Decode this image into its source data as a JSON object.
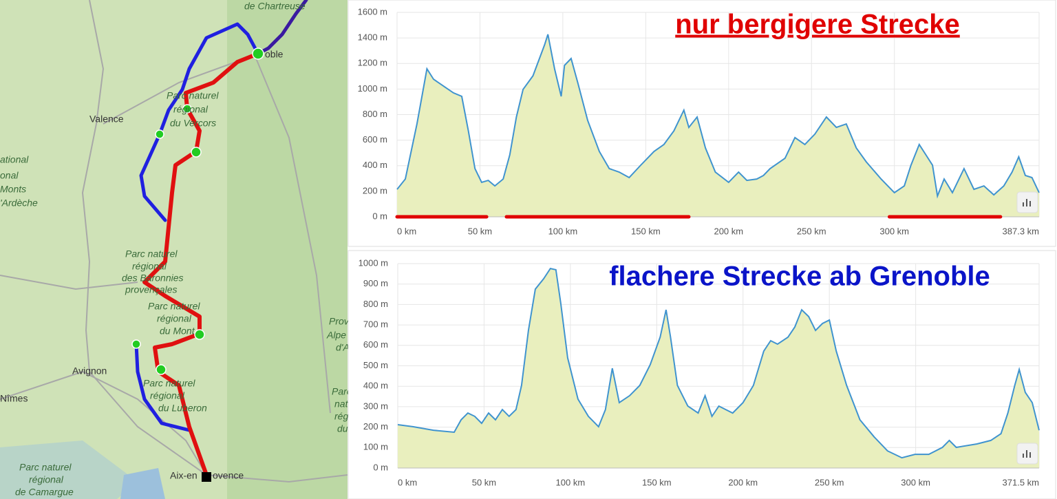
{
  "map": {
    "labels": [
      "de Chartreuse",
      "oble",
      "Valence",
      "Parc naturel",
      "régional",
      "du Vercors",
      "Parc naturel",
      "régional",
      "des Baronnies",
      "provençales",
      "Parc naturel",
      "régional",
      "du Mont",
      "Avignon",
      "Nîmes",
      "Parc naturel",
      "régional",
      "du Luberon",
      "Aix-en",
      "ovence",
      "Parc naturel",
      "régional",
      "de Camargue",
      "Prov",
      "Alpe",
      "d'A",
      "Parc",
      "nat",
      "rég",
      "du",
      "ational",
      "onal",
      "Monts",
      "'Ardèche"
    ]
  },
  "chart_data": [
    {
      "type": "area",
      "title": "nur bergigere Strecke",
      "title_color": "#e00000",
      "title_underline": true,
      "color": "#3f93cf",
      "fill": "#e9efbe",
      "x": [
        0,
        5,
        12,
        18,
        22,
        28,
        34,
        39,
        43,
        47,
        51,
        55,
        59,
        64,
        68,
        72,
        76,
        82,
        89,
        91,
        95,
        99,
        101,
        105,
        109,
        115,
        122,
        128,
        134,
        140,
        147,
        155,
        161,
        167,
        173,
        176,
        181,
        186,
        192,
        200,
        206,
        211,
        217,
        221,
        225,
        234,
        240,
        246,
        252,
        259,
        265,
        271,
        277,
        283,
        292,
        300,
        306,
        310,
        315,
        319,
        323,
        326,
        330,
        335,
        342,
        348,
        354,
        360,
        366,
        371,
        375,
        379,
        383,
        387.3
      ],
      "values": [
        215,
        296,
        727,
        1158,
        1077,
        1023,
        970,
        943,
        673,
        377,
        270,
        285,
        242,
        296,
        485,
        781,
        997,
        1104,
        1347,
        1428,
        1158,
        943,
        1185,
        1239,
        1050,
        754,
        512,
        377,
        350,
        307,
        404,
        512,
        566,
        673,
        835,
        700,
        781,
        539,
        350,
        270,
        350,
        285,
        296,
        323,
        377,
        458,
        620,
        566,
        647,
        781,
        700,
        727,
        539,
        431,
        296,
        189,
        242,
        404,
        566,
        485,
        404,
        162,
        296,
        189,
        377,
        215,
        242,
        172,
        242,
        350,
        469,
        323,
        307,
        189
      ],
      "xlim": [
        0,
        387.3
      ],
      "xticks": [
        {
          "value": 0,
          "label": "0 km"
        },
        {
          "value": 50,
          "label": "50 km"
        },
        {
          "value": 100,
          "label": "100 km"
        },
        {
          "value": 150,
          "label": "150 km"
        },
        {
          "value": 200,
          "label": "200 km"
        },
        {
          "value": 250,
          "label": "250 km"
        },
        {
          "value": 300,
          "label": "300 km"
        },
        {
          "value": 387.3,
          "label": "387.3 km"
        }
      ],
      "ylim": [
        0,
        1600
      ],
      "yticks": [
        {
          "value": 0,
          "label": "0 m"
        },
        {
          "value": 200,
          "label": "200 m"
        },
        {
          "value": 400,
          "label": "400 m"
        },
        {
          "value": 600,
          "label": "600 m"
        },
        {
          "value": 800,
          "label": "800 m"
        },
        {
          "value": 1000,
          "label": "1000 m"
        },
        {
          "value": 1200,
          "label": "1200 m"
        },
        {
          "value": 1400,
          "label": "1400 m"
        },
        {
          "value": 1600,
          "label": "1600 m"
        }
      ],
      "grid": true,
      "highlights": [
        [
          0,
          54
        ],
        [
          66,
          176
        ],
        [
          297,
          364
        ]
      ],
      "highlight_color": "#e00000"
    },
    {
      "type": "area",
      "title": "flachere Strecke ab Grenoble",
      "title_color": "#0a14c8",
      "title_underline": false,
      "color": "#3f93cf",
      "fill": "#e9efbe",
      "x": [
        0,
        9,
        20.7,
        32.7,
        36.7,
        40.6,
        44.6,
        48.6,
        52.6,
        56.6,
        60.6,
        64.5,
        68.5,
        71.7,
        75.7,
        79.7,
        84.5,
        88.4,
        91.6,
        94.4,
        98.4,
        104.4,
        110.4,
        116.3,
        120.3,
        124.3,
        128.3,
        134.3,
        140.2,
        146.2,
        152,
        155.4,
        158,
        162,
        168,
        174,
        178,
        182,
        186,
        190,
        194,
        200,
        206,
        212,
        216,
        220,
        226,
        230,
        234,
        238,
        242,
        246,
        250,
        254,
        260,
        267.7,
        276,
        283.7,
        292,
        299.6,
        307.6,
        315.5,
        319.5,
        323.5,
        335.5,
        343.5,
        349.4,
        353.4,
        357.4,
        360,
        363.5,
        367.5,
        371.5
      ],
      "values": [
        212,
        202,
        185,
        175,
        236,
        269,
        253,
        219,
        269,
        236,
        286,
        253,
        286,
        404,
        673,
        875,
        926,
        976,
        970,
        808,
        539,
        337,
        253,
        202,
        286,
        488,
        320,
        354,
        404,
        505,
        640,
        774,
        640,
        404,
        303,
        269,
        354,
        253,
        303,
        286,
        269,
        320,
        404,
        572,
        623,
        606,
        640,
        690,
        774,
        741,
        673,
        707,
        724,
        572,
        404,
        236,
        152,
        84,
        50,
        67,
        67,
        101,
        135,
        101,
        118,
        135,
        168,
        269,
        404,
        482,
        370,
        320,
        185
      ],
      "xlim": [
        0,
        371.5
      ],
      "xticks": [
        {
          "value": 0,
          "label": "0 km"
        },
        {
          "value": 50,
          "label": "50 km"
        },
        {
          "value": 100,
          "label": "100 km"
        },
        {
          "value": 150,
          "label": "150 km"
        },
        {
          "value": 200,
          "label": "200 km"
        },
        {
          "value": 250,
          "label": "250 km"
        },
        {
          "value": 300,
          "label": "300 km"
        },
        {
          "value": 371.5,
          "label": "371.5 km"
        }
      ],
      "ylim": [
        0,
        1000
      ],
      "yticks": [
        {
          "value": 0,
          "label": "0 m"
        },
        {
          "value": 100,
          "label": "100 m"
        },
        {
          "value": 200,
          "label": "200 m"
        },
        {
          "value": 300,
          "label": "300 m"
        },
        {
          "value": 400,
          "label": "400 m"
        },
        {
          "value": 500,
          "label": "500 m"
        },
        {
          "value": 600,
          "label": "600 m"
        },
        {
          "value": 700,
          "label": "700 m"
        },
        {
          "value": 800,
          "label": "800 m"
        },
        {
          "value": 900,
          "label": "900 m"
        },
        {
          "value": 1000,
          "label": "1000 m"
        }
      ],
      "grid": true
    }
  ]
}
